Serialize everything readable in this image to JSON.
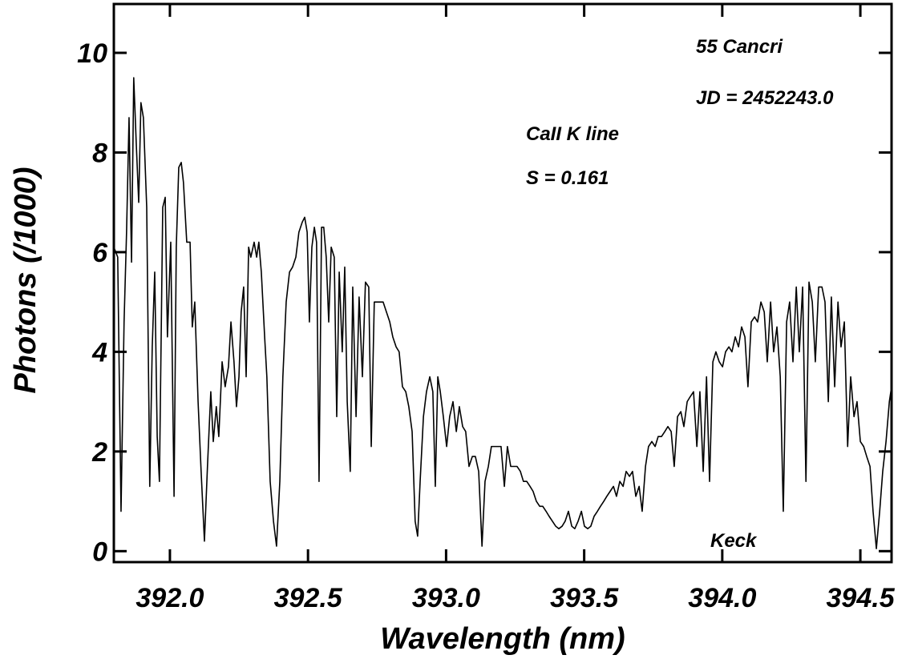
{
  "chart_data": {
    "type": "line",
    "annotations": [
      "55 Cancri",
      "JD = 2452243.0",
      "CaII K line",
      "S = 0.161",
      "Keck"
    ],
    "x_label": "Wavelength (nm)",
    "y_label": "Photons (/1000)",
    "xlim": [
      391.797,
      394.613
    ],
    "ylim": [
      -0.22,
      10.98
    ],
    "xticks": [
      {
        "value": 392,
        "label": "392.0"
      },
      {
        "value": 392.5,
        "label": "392.5"
      },
      {
        "value": 393,
        "label": "393.0"
      },
      {
        "value": 393.5,
        "label": "393.5"
      },
      {
        "value": 394,
        "label": "394.0"
      },
      {
        "value": 394.5,
        "label": "394.5"
      }
    ],
    "yticks": [
      0,
      2,
      4,
      6,
      8,
      10
    ],
    "color": "#000000",
    "x": [
      391.797,
      391.811,
      391.823,
      391.834,
      391.843,
      391.852,
      391.861,
      391.869,
      391.878,
      391.887,
      391.895,
      391.904,
      391.916,
      391.927,
      391.936,
      391.945,
      391.954,
      391.962,
      391.974,
      391.983,
      391.991,
      392.003,
      392.015,
      392.023,
      392.032,
      392.041,
      392.049,
      392.061,
      392.073,
      392.081,
      392.09,
      392.102,
      392.113,
      392.125,
      392.136,
      392.148,
      392.157,
      392.168,
      392.177,
      392.189,
      392.2,
      392.212,
      392.221,
      392.232,
      392.241,
      392.25,
      392.258,
      392.267,
      392.276,
      392.285,
      392.293,
      392.305,
      392.314,
      392.322,
      392.331,
      392.343,
      392.351,
      392.363,
      392.375,
      392.386,
      392.398,
      392.409,
      392.421,
      392.433,
      392.444,
      392.456,
      392.467,
      392.479,
      392.488,
      392.497,
      392.505,
      392.514,
      392.523,
      392.531,
      392.54,
      392.549,
      392.557,
      392.566,
      392.575,
      392.584,
      392.595,
      392.604,
      392.613,
      392.624,
      392.633,
      392.642,
      392.653,
      392.662,
      392.674,
      392.685,
      392.697,
      392.708,
      392.72,
      392.729,
      392.74,
      392.752,
      392.764,
      392.772,
      392.784,
      392.796,
      392.807,
      392.819,
      392.83,
      392.842,
      392.854,
      392.865,
      392.877,
      392.888,
      392.897,
      392.906,
      392.918,
      392.929,
      392.941,
      392.952,
      392.961,
      392.97,
      392.979,
      392.99,
      393.002,
      393.013,
      393.025,
      393.037,
      393.048,
      393.06,
      393.071,
      393.083,
      393.095,
      393.106,
      393.118,
      393.13,
      393.141,
      393.153,
      393.164,
      393.176,
      393.188,
      393.199,
      393.211,
      393.222,
      393.234,
      393.246,
      393.257,
      393.269,
      393.28,
      393.292,
      393.304,
      393.315,
      393.327,
      393.339,
      393.35,
      393.362,
      393.373,
      393.385,
      393.397,
      393.408,
      393.42,
      393.431,
      393.443,
      393.455,
      393.466,
      393.478,
      393.49,
      393.501,
      393.513,
      393.524,
      393.536,
      393.548,
      393.559,
      393.571,
      393.582,
      393.594,
      393.606,
      393.617,
      393.629,
      393.641,
      393.652,
      393.664,
      393.675,
      393.687,
      393.699,
      393.71,
      393.722,
      393.733,
      393.745,
      393.757,
      393.768,
      393.78,
      393.792,
      393.803,
      393.815,
      393.826,
      393.838,
      393.85,
      393.861,
      393.873,
      393.884,
      393.896,
      393.908,
      393.919,
      393.931,
      393.943,
      393.954,
      393.966,
      393.977,
      393.989,
      394.001,
      394.012,
      394.024,
      394.035,
      394.047,
      394.059,
      394.07,
      394.082,
      394.093,
      394.105,
      394.117,
      394.128,
      394.14,
      394.152,
      394.163,
      394.175,
      394.186,
      394.198,
      394.21,
      394.221,
      394.233,
      394.244,
      394.256,
      394.268,
      394.279,
      394.291,
      394.303,
      394.314,
      394.326,
      394.337,
      394.349,
      394.361,
      394.372,
      394.384,
      394.395,
      394.407,
      394.419,
      394.43,
      394.442,
      394.454,
      394.465,
      394.477,
      394.488,
      394.5,
      394.512,
      394.523,
      394.535,
      394.546,
      394.558,
      394.57,
      394.581,
      394.593,
      394.605,
      394.613
    ],
    "values": [
      6.1,
      5.9,
      0.8,
      4.6,
      6.4,
      8.7,
      5.8,
      9.5,
      8.2,
      7.0,
      9.0,
      8.7,
      6.9,
      1.3,
      4.1,
      5.6,
      2.3,
      1.4,
      6.9,
      7.1,
      4.3,
      6.2,
      1.1,
      6.1,
      7.7,
      7.8,
      7.4,
      6.2,
      6.2,
      4.5,
      5.0,
      3.0,
      1.6,
      0.2,
      1.7,
      3.2,
      2.2,
      2.9,
      2.3,
      3.8,
      3.3,
      3.7,
      4.6,
      3.8,
      2.9,
      3.5,
      4.8,
      5.3,
      3.5,
      6.1,
      5.9,
      6.2,
      5.9,
      6.2,
      5.6,
      4.3,
      3.5,
      1.4,
      0.6,
      0.1,
      1.4,
      3.5,
      5.0,
      5.6,
      5.7,
      5.9,
      6.4,
      6.6,
      6.7,
      6.4,
      4.6,
      6.1,
      6.5,
      6.2,
      1.4,
      6.5,
      6.5,
      5.9,
      4.6,
      6.1,
      5.9,
      2.7,
      5.6,
      4.0,
      5.7,
      3.0,
      1.6,
      5.3,
      2.7,
      5.1,
      3.5,
      5.4,
      5.3,
      2.1,
      5.0,
      5.0,
      5.0,
      5.0,
      4.8,
      4.6,
      4.3,
      4.1,
      4.0,
      3.3,
      3.2,
      2.9,
      2.4,
      0.6,
      0.3,
      1.4,
      2.7,
      3.2,
      3.5,
      3.2,
      1.3,
      3.5,
      3.2,
      2.7,
      2.1,
      2.7,
      3.0,
      2.4,
      2.9,
      2.5,
      2.4,
      1.7,
      1.9,
      1.9,
      1.6,
      0.1,
      1.4,
      1.7,
      2.1,
      2.1,
      2.1,
      2.1,
      1.3,
      2.1,
      1.7,
      1.7,
      1.7,
      1.6,
      1.4,
      1.4,
      1.3,
      1.2,
      1.0,
      0.9,
      0.9,
      0.8,
      0.7,
      0.6,
      0.5,
      0.45,
      0.5,
      0.6,
      0.8,
      0.5,
      0.45,
      0.6,
      0.8,
      0.5,
      0.45,
      0.5,
      0.7,
      0.8,
      0.9,
      1.0,
      1.1,
      1.2,
      1.3,
      1.1,
      1.4,
      1.3,
      1.6,
      1.5,
      1.6,
      1.1,
      1.3,
      0.8,
      1.7,
      2.1,
      2.2,
      2.1,
      2.3,
      2.3,
      2.4,
      2.5,
      2.4,
      1.7,
      2.7,
      2.8,
      2.5,
      3.0,
      3.1,
      3.2,
      2.1,
      3.2,
      1.6,
      3.5,
      1.4,
      3.8,
      4.0,
      3.8,
      3.7,
      4.0,
      4.1,
      4.0,
      4.3,
      4.1,
      4.5,
      4.3,
      3.3,
      4.6,
      4.7,
      4.6,
      5.0,
      4.8,
      3.8,
      5.0,
      4.0,
      4.5,
      3.5,
      0.8,
      4.6,
      5.0,
      3.8,
      5.3,
      4.0,
      5.3,
      1.4,
      5.4,
      5.0,
      3.8,
      5.3,
      5.3,
      5.0,
      3.0,
      5.1,
      3.3,
      5.0,
      4.1,
      4.6,
      2.1,
      3.5,
      2.7,
      3.0,
      2.2,
      2.1,
      1.9,
      1.7,
      0.8,
      0.05,
      0.8,
      1.6,
      2.2,
      3.0,
      3.3
    ]
  }
}
